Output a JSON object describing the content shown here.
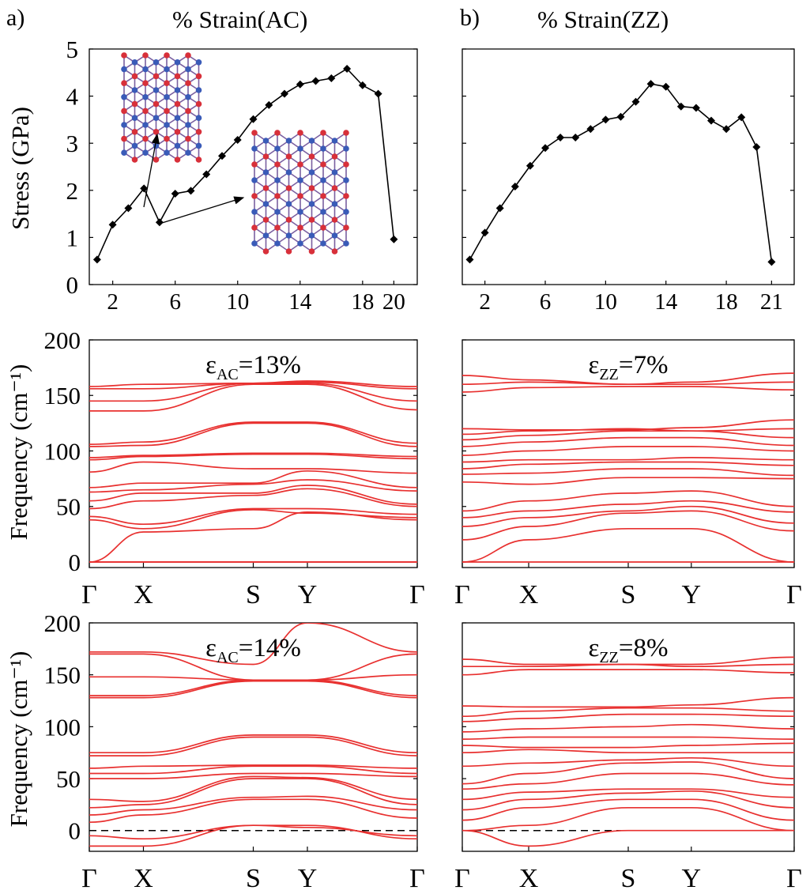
{
  "figure": {
    "panel_a_label": "a)",
    "panel_b_label": "b)",
    "panel_a_title": "% Strain(AC)",
    "panel_b_title": "% Strain(ZZ)",
    "stress_ylabel": "Stress (GPa)",
    "freq_ylabel": "Frequency (cm⁻¹)",
    "line_color": "#000000",
    "band_color": "#e8302f",
    "atom_colors": {
      "atom_a": "#3a5bb8",
      "atom_b": "#d8303a"
    }
  },
  "chart_data": [
    {
      "id": "stress_ac",
      "type": "line",
      "title": "% Strain(AC)",
      "xlabel": "",
      "ylabel": "Stress (GPa)",
      "xlim": [
        0.5,
        21.5
      ],
      "ylim": [
        0,
        5
      ],
      "xticks": [
        2,
        6,
        10,
        14,
        18,
        20
      ],
      "xtick_labels": [
        "2",
        "6",
        "10",
        "14",
        "18",
        "20"
      ],
      "yticks": [
        0,
        1,
        2,
        3,
        4,
        5
      ],
      "ytick_labels": [
        "0",
        "1",
        "2",
        "3",
        "4",
        "5"
      ],
      "marker": "diamond",
      "x": [
        1,
        2,
        3,
        4,
        5,
        6,
        7,
        8,
        9,
        10,
        11,
        12,
        13,
        14,
        15,
        16,
        17,
        18,
        19,
        20
      ],
      "values": [
        0.53,
        1.27,
        1.62,
        2.04,
        1.32,
        1.93,
        1.99,
        2.34,
        2.73,
        3.07,
        3.51,
        3.81,
        4.05,
        4.25,
        4.32,
        4.38,
        4.58,
        4.23,
        4.05,
        0.96
      ]
    },
    {
      "id": "stress_zz",
      "type": "line",
      "title": "% Strain(ZZ)",
      "xlabel": "",
      "ylabel": "",
      "xlim": [
        0.5,
        22.5
      ],
      "ylim": [
        0,
        5
      ],
      "xticks": [
        2,
        6,
        10,
        14,
        18,
        21
      ],
      "xtick_labels": [
        "2",
        "6",
        "10",
        "14",
        "18",
        "21"
      ],
      "yticks": [
        0,
        1,
        2,
        3,
        4,
        5
      ],
      "ytick_labels": [],
      "marker": "diamond",
      "x": [
        1,
        2,
        3,
        4,
        5,
        6,
        7,
        8,
        9,
        10,
        11,
        12,
        13,
        14,
        15,
        16,
        17,
        18,
        19,
        20,
        21
      ],
      "values": [
        0.53,
        1.1,
        1.62,
        2.08,
        2.52,
        2.9,
        3.12,
        3.12,
        3.3,
        3.5,
        3.56,
        3.88,
        4.26,
        4.2,
        3.78,
        3.75,
        3.48,
        3.3,
        3.55,
        2.92,
        0.48
      ]
    },
    {
      "id": "phonon_ac13",
      "type": "line",
      "annotation": "εAC=13%",
      "annotation_main": "ε",
      "annotation_sub": "AC",
      "annotation_tail": "=13%",
      "ylabel": "Frequency (cm⁻¹)",
      "ylim": [
        -5,
        200
      ],
      "yticks": [
        0,
        50,
        100,
        150,
        200
      ],
      "ytick_labels": [
        "0",
        "50",
        "100",
        "150",
        "200"
      ],
      "kpoints": [
        "Γ",
        "X",
        "S",
        "Y",
        "Γ"
      ],
      "kpoint_pos": [
        0,
        0.165,
        0.5,
        0.665,
        1.0
      ],
      "dashed_zero": false,
      "band_endpoints": [
        [
          0,
          0,
          0,
          0,
          0
        ],
        [
          0,
          0,
          0,
          0,
          0
        ],
        [
          0,
          27,
          30,
          45,
          38
        ],
        [
          38,
          30,
          47,
          44,
          40
        ],
        [
          41,
          34,
          48,
          48,
          43
        ],
        [
          48,
          55,
          60,
          66,
          50
        ],
        [
          55,
          62,
          62,
          69,
          52
        ],
        [
          63,
          65,
          70,
          74,
          64
        ],
        [
          67,
          71,
          71,
          82,
          67
        ],
        [
          81,
          90,
          84,
          84,
          80
        ],
        [
          92,
          95,
          97,
          97,
          93
        ],
        [
          94,
          96,
          98,
          98,
          95
        ],
        [
          104,
          105,
          125,
          125,
          104
        ],
        [
          106,
          108,
          126,
          126,
          107
        ],
        [
          136,
          136,
          160,
          160,
          137
        ],
        [
          145,
          145,
          161,
          161,
          145
        ],
        [
          156,
          156,
          161,
          162,
          156
        ],
        [
          158,
          160,
          161,
          163,
          158
        ]
      ]
    },
    {
      "id": "phonon_zz7",
      "type": "line",
      "annotation": "εZZ=7%",
      "annotation_main": "ε",
      "annotation_sub": "ZZ",
      "annotation_tail": "=7%",
      "ylabel": "",
      "ylim": [
        -5,
        200
      ],
      "yticks": [
        0,
        50,
        100,
        150,
        200
      ],
      "ytick_labels": [],
      "kpoints": [
        "Γ",
        "X",
        "S",
        "Y",
        "Γ"
      ],
      "kpoint_pos": [
        0,
        0.2,
        0.5,
        0.69,
        1.0
      ],
      "dashed_zero": false,
      "band_endpoints": [
        [
          0,
          0,
          0,
          0,
          0
        ],
        [
          0,
          20,
          30,
          30,
          0
        ],
        [
          20,
          32,
          44,
          46,
          28
        ],
        [
          32,
          40,
          46,
          50,
          35
        ],
        [
          40,
          46,
          52,
          55,
          45
        ],
        [
          46,
          55,
          62,
          64,
          50
        ],
        [
          72,
          70,
          76,
          76,
          75
        ],
        [
          79,
          80,
          84,
          84,
          78
        ],
        [
          84,
          88,
          90,
          90,
          87
        ],
        [
          90,
          92,
          92,
          94,
          92
        ],
        [
          96,
          100,
          104,
          104,
          100
        ],
        [
          104,
          108,
          112,
          112,
          105
        ],
        [
          110,
          114,
          118,
          118,
          112
        ],
        [
          115,
          118,
          120,
          118,
          120
        ],
        [
          120,
          119,
          119,
          121,
          128
        ],
        [
          153,
          157,
          158,
          158,
          155
        ],
        [
          160,
          162,
          160,
          160,
          162
        ],
        [
          168,
          164,
          160,
          162,
          170
        ]
      ]
    },
    {
      "id": "phonon_ac14",
      "type": "line",
      "annotation": "εAC=14%",
      "annotation_main": "ε",
      "annotation_sub": "AC",
      "annotation_tail": "=14%",
      "ylabel": "Frequency (cm⁻¹)",
      "ylim": [
        -20,
        200
      ],
      "yticks": [
        0,
        50,
        100,
        150,
        200
      ],
      "ytick_labels": [
        "0",
        "50",
        "100",
        "150",
        "200"
      ],
      "kpoints": [
        "Γ",
        "X",
        "S",
        "Y",
        "Γ"
      ],
      "kpoint_pos": [
        0,
        0.165,
        0.5,
        0.665,
        1.0
      ],
      "dashed_zero": true,
      "band_endpoints": [
        [
          -15,
          -15,
          5,
          5,
          -8
        ],
        [
          -5,
          -8,
          5,
          3,
          -5
        ],
        [
          8,
          15,
          30,
          30,
          12
        ],
        [
          15,
          20,
          32,
          33,
          20
        ],
        [
          22,
          25,
          50,
          50,
          25
        ],
        [
          30,
          28,
          52,
          51,
          30
        ],
        [
          50,
          50,
          55,
          55,
          52
        ],
        [
          55,
          55,
          62,
          62,
          55
        ],
        [
          60,
          62,
          63,
          63,
          60
        ],
        [
          72,
          72,
          90,
          90,
          72
        ],
        [
          75,
          75,
          92,
          92,
          75
        ],
        [
          128,
          128,
          144,
          144,
          128
        ],
        [
          130,
          130,
          145,
          145,
          130
        ],
        [
          148,
          148,
          145,
          145,
          150
        ],
        [
          170,
          170,
          145,
          145,
          170
        ],
        [
          172,
          172,
          160,
          200,
          172
        ]
      ]
    },
    {
      "id": "phonon_zz8",
      "type": "line",
      "annotation": "εZZ=8%",
      "annotation_main": "ε",
      "annotation_sub": "ZZ",
      "annotation_tail": "=8%",
      "ylabel": "",
      "ylim": [
        -20,
        200
      ],
      "yticks": [
        0,
        50,
        100,
        150,
        200
      ],
      "ytick_labels": [],
      "kpoints": [
        "Γ",
        "X",
        "S",
        "Y",
        "Γ"
      ],
      "kpoint_pos": [
        0,
        0.2,
        0.5,
        0.69,
        1.0
      ],
      "dashed_zero": true,
      "band_endpoints": [
        [
          0,
          -15,
          0,
          0,
          0
        ],
        [
          0,
          5,
          22,
          22,
          0
        ],
        [
          10,
          22,
          30,
          30,
          10
        ],
        [
          20,
          30,
          36,
          38,
          22
        ],
        [
          30,
          37,
          40,
          40,
          32
        ],
        [
          40,
          45,
          55,
          55,
          44
        ],
        [
          45,
          55,
          65,
          66,
          50
        ],
        [
          62,
          65,
          68,
          70,
          62
        ],
        [
          75,
          78,
          75,
          75,
          75
        ],
        [
          82,
          80,
          80,
          82,
          84
        ],
        [
          88,
          90,
          90,
          90,
          88
        ],
        [
          95,
          98,
          100,
          102,
          98
        ],
        [
          105,
          108,
          112,
          112,
          110
        ],
        [
          110,
          115,
          118,
          118,
          115
        ],
        [
          120,
          119,
          119,
          121,
          128
        ],
        [
          150,
          155,
          155,
          155,
          152
        ],
        [
          158,
          158,
          160,
          158,
          160
        ],
        [
          165,
          160,
          160,
          160,
          167
        ]
      ]
    }
  ]
}
